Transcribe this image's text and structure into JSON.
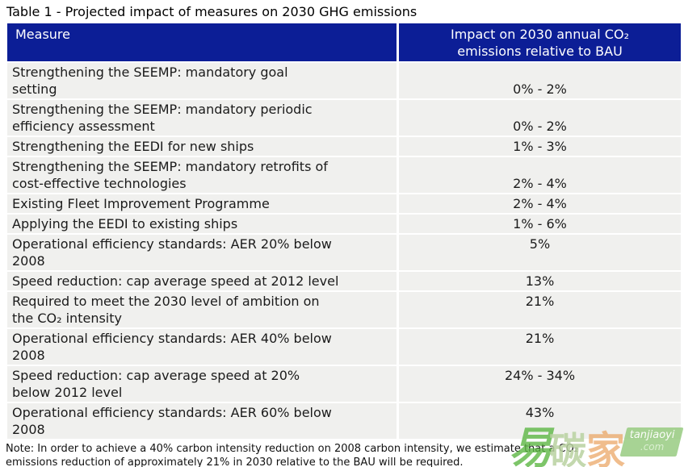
{
  "title": "Table 1 - Projected impact of measures on 2030 GHG emissions",
  "table": {
    "headers": {
      "measure": "Measure",
      "impact": "Impact on 2030 annual CO₂\nemissions relative to BAU"
    },
    "rows": [
      {
        "measure": "Strengthening the SEEMP: mandatory goal\nsetting",
        "impact": "0% - 2%"
      },
      {
        "measure": "Strengthening the SEEMP: mandatory periodic\nefficiency assessment",
        "impact": "0% - 2%"
      },
      {
        "measure": "Strengthening the EEDI for new ships",
        "impact": "1% - 3%"
      },
      {
        "measure": "Strengthening the SEEMP: mandatory retrofits of\ncost-effective technologies",
        "impact": "2% - 4%"
      },
      {
        "measure": "Existing Fleet Improvement Programme",
        "impact": "2% - 4%"
      },
      {
        "measure": "Applying the EEDI to existing ships",
        "impact": "1% - 6%"
      },
      {
        "measure": "Operational efficiency standards: AER 20% below\n2008",
        "impact": "5%"
      },
      {
        "measure": "Speed reduction: cap average speed at 2012 level",
        "impact": "13%"
      },
      {
        "measure": "Required to meet the 2030 level of ambition on\nthe CO₂ intensity",
        "impact": "21%"
      },
      {
        "measure": "Operational efficiency standards: AER 40% below\n2008",
        "impact": "21%"
      },
      {
        "measure": "Speed reduction: cap average speed at 20%\nbelow 2012 level",
        "impact": "24% - 34%"
      },
      {
        "measure": "Operational efficiency standards: AER 60% below\n2008",
        "impact": "43%"
      }
    ]
  },
  "note": "Note: In order to achieve a 40% carbon intensity reduction on 2008 carbon intensity, we estimate that a CO₂\nemissions reduction of approximately 21% in 2030 relative to the BAU will be required.",
  "watermark": {
    "chars": [
      "易",
      "碳",
      "家"
    ],
    "brand": "tanjiaoyi",
    "domain": ".com"
  },
  "colors": {
    "header_bg": "#0c1e96",
    "header_text": "#ffffff",
    "row_bg": "#f0f0ee",
    "body_text": "#1b1b1b",
    "watermark_green": "#5cb644",
    "watermark_pale_green": "#b8d1a0",
    "watermark_orange": "#e9a15c"
  }
}
